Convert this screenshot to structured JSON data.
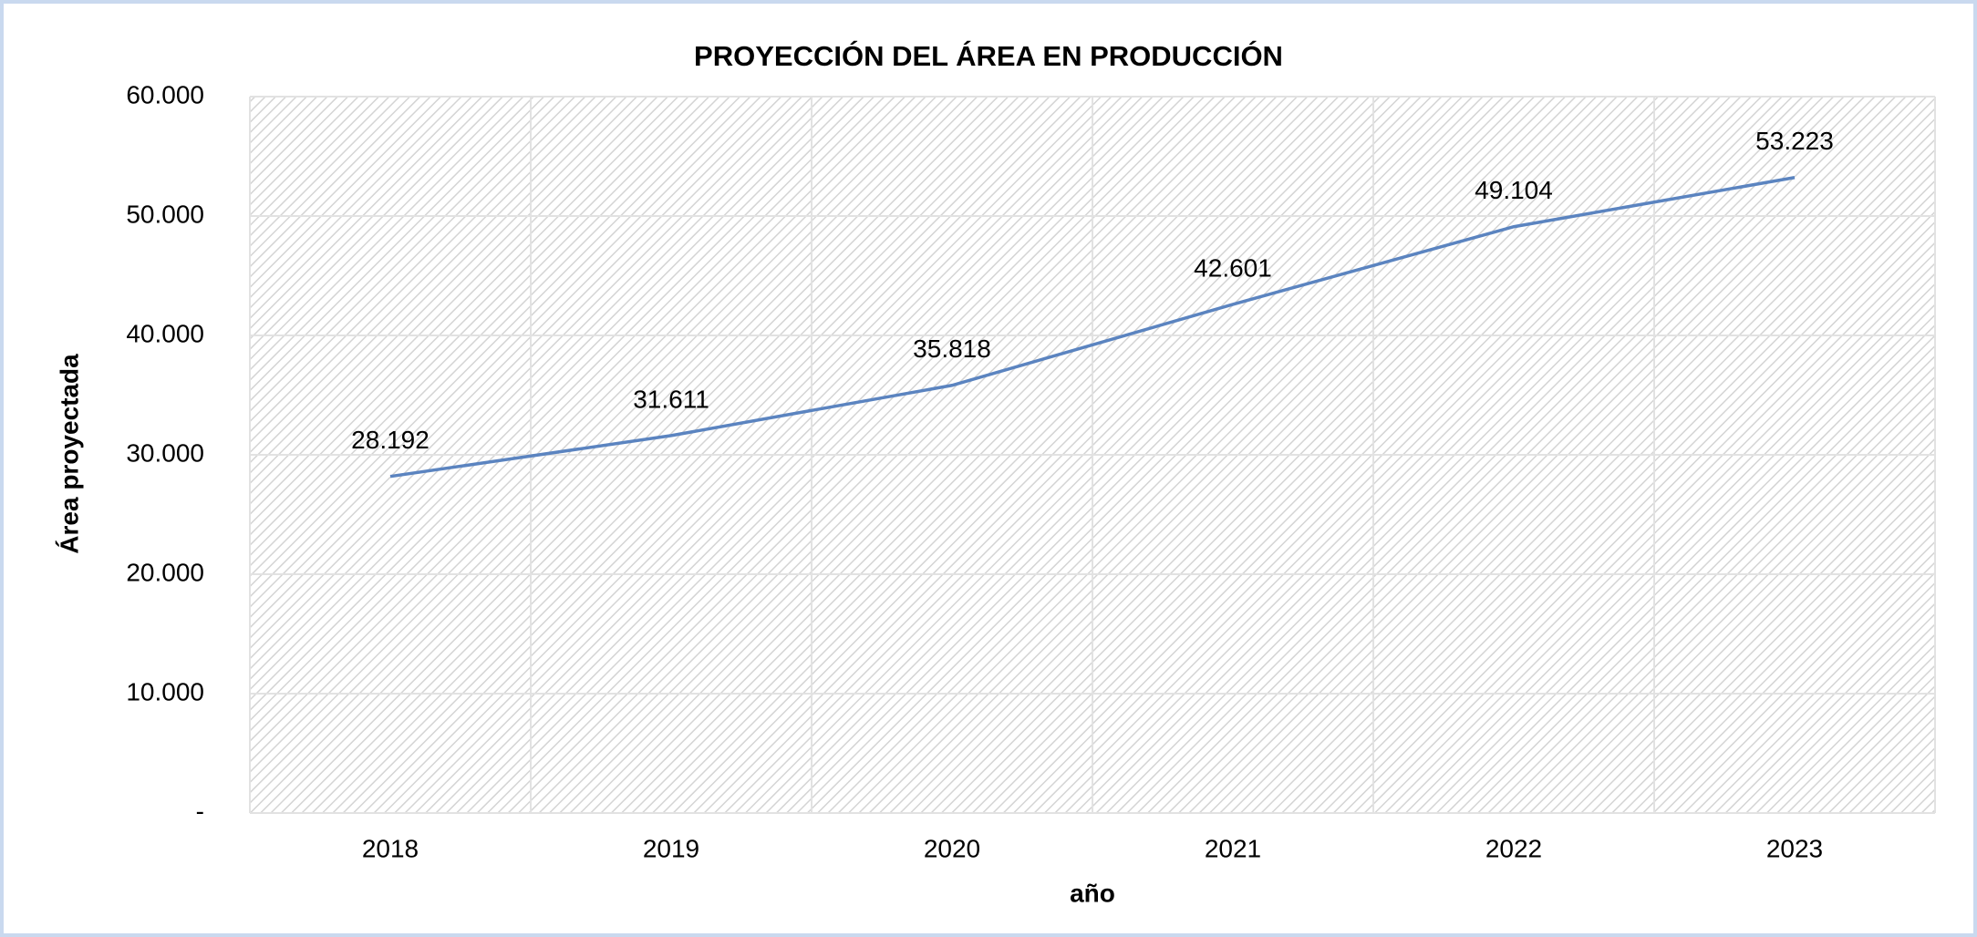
{
  "chart_data": {
    "type": "line",
    "title": "PROYECCIÓN DEL ÁREA EN PRODUCCIÓN",
    "x_label": "año",
    "y_label": "Área proyectada",
    "categories": [
      "2018",
      "2019",
      "2020",
      "2021",
      "2022",
      "2023"
    ],
    "series": [
      {
        "name": "Área proyectada",
        "color": "#5b84c0",
        "values": [
          28192,
          31611,
          35818,
          42601,
          49104,
          53223
        ],
        "value_labels": [
          "28.192",
          "31.611",
          "35.818",
          "42.601",
          "49.104",
          "53.223"
        ]
      }
    ],
    "ylim": [
      0,
      60000
    ],
    "yticks": [
      {
        "value": 0,
        "label": "-"
      },
      {
        "value": 10000,
        "label": "10.000"
      },
      {
        "value": 20000,
        "label": "20.000"
      },
      {
        "value": 30000,
        "label": "30.000"
      },
      {
        "value": 40000,
        "label": "40.000"
      },
      {
        "value": 50000,
        "label": "50.000"
      },
      {
        "value": 60000,
        "label": "60.000"
      }
    ],
    "grid": true
  }
}
